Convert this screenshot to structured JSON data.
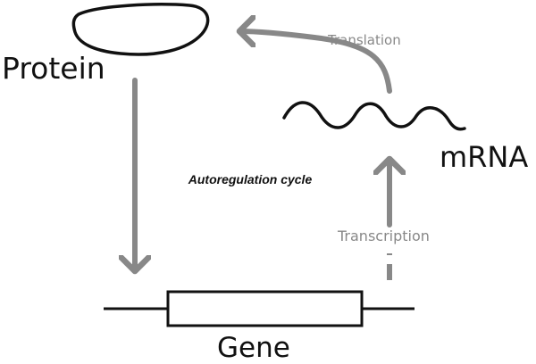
{
  "labels": {
    "protein": "Protein",
    "mrna": "mRNA",
    "gene": "Gene",
    "translation": "Translation",
    "transcription": "Transcription",
    "cycle": "Autoregulation cycle"
  },
  "colors": {
    "ink": "#111111",
    "arrow_gray": "#888888",
    "background": "#ffffff"
  }
}
